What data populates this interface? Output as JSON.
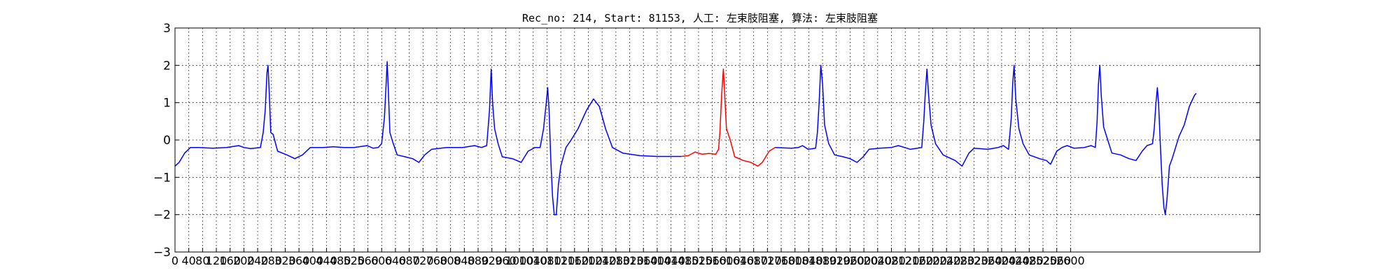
{
  "chart_data": {
    "type": "line",
    "title": "Rec_no: 214, Start: 81153, 人工: 左束肢阻塞, 算法: 左束肢阻塞",
    "xlabel": "",
    "ylabel": "",
    "xlim": [
      0,
      3150
    ],
    "ylim": [
      -3,
      3
    ],
    "yticks": [
      -3,
      -2,
      -1,
      0,
      1,
      2,
      3
    ],
    "ytick_labels": [
      "−3",
      "−2",
      "−1",
      "0",
      "1",
      "2",
      "3"
    ],
    "xtick_step": 40,
    "xtick_max": 2600,
    "xtick_labels": [
      "0",
      "40",
      "80",
      "120",
      "160",
      "200",
      "240",
      "280",
      "320",
      "360",
      "400",
      "440",
      "480",
      "520",
      "560",
      "600",
      "640",
      "680",
      "720",
      "760",
      "800",
      "840",
      "880",
      "920",
      "960",
      "1000",
      "1040",
      "1080",
      "1120",
      "1160",
      "1200",
      "1240",
      "1280",
      "1320",
      "1360",
      "1400",
      "1440",
      "1480",
      "1520",
      "1560",
      "1600",
      "1640",
      "1680",
      "1720",
      "1760",
      "1800",
      "1840",
      "1880",
      "1920",
      "1960",
      "2000",
      "2040",
      "2080",
      "2120",
      "2160",
      "2200",
      "2240",
      "2280",
      "2320",
      "2360",
      "2400",
      "2440",
      "2480",
      "2520",
      "2560",
      "2600"
    ],
    "grid": true,
    "series": [
      {
        "color": "#0000ff",
        "points": [
          [
            0,
            -0.7
          ],
          [
            12,
            -0.6
          ],
          [
            28,
            -0.35
          ],
          [
            45,
            -0.2
          ],
          [
            70,
            -0.2
          ],
          [
            110,
            -0.22
          ],
          [
            150,
            -0.2
          ],
          [
            185,
            -0.15
          ],
          [
            200,
            -0.2
          ],
          [
            220,
            -0.23
          ],
          [
            248,
            -0.2
          ],
          [
            256,
            0.2
          ],
          [
            262,
            0.8
          ],
          [
            267,
            1.8
          ],
          [
            270,
            2.0
          ],
          [
            274,
            1.2
          ],
          [
            278,
            0.2
          ],
          [
            285,
            0.15
          ],
          [
            298,
            -0.3
          ],
          [
            325,
            -0.4
          ],
          [
            348,
            -0.5
          ],
          [
            370,
            -0.4
          ],
          [
            393,
            -0.2
          ],
          [
            430,
            -0.2
          ],
          [
            460,
            -0.18
          ],
          [
            490,
            -0.2
          ],
          [
            520,
            -0.2
          ],
          [
            558,
            -0.15
          ],
          [
            575,
            -0.22
          ],
          [
            590,
            -0.2
          ],
          [
            600,
            -0.1
          ],
          [
            608,
            0.6
          ],
          [
            613,
            1.5
          ],
          [
            616,
            2.1
          ],
          [
            619,
            1.4
          ],
          [
            624,
            0.2
          ],
          [
            632,
            -0.05
          ],
          [
            645,
            -0.4
          ],
          [
            668,
            -0.45
          ],
          [
            690,
            -0.5
          ],
          [
            708,
            -0.6
          ],
          [
            725,
            -0.4
          ],
          [
            745,
            -0.25
          ],
          [
            790,
            -0.2
          ],
          [
            835,
            -0.2
          ],
          [
            870,
            -0.15
          ],
          [
            890,
            -0.2
          ],
          [
            905,
            -0.15
          ],
          [
            913,
            0.8
          ],
          [
            918,
            1.9
          ],
          [
            922,
            1.0
          ],
          [
            928,
            0.3
          ],
          [
            938,
            -0.1
          ],
          [
            950,
            -0.45
          ],
          [
            980,
            -0.5
          ],
          [
            1005,
            -0.6
          ],
          [
            1025,
            -0.3
          ],
          [
            1045,
            -0.2
          ],
          [
            1060,
            -0.2
          ],
          [
            1070,
            0.3
          ],
          [
            1078,
            1.0
          ],
          [
            1082,
            1.4
          ],
          [
            1086,
            0.8
          ],
          [
            1091,
            -0.5
          ],
          [
            1096,
            -1.5
          ],
          [
            1101,
            -2.0
          ],
          [
            1107,
            -2.0
          ],
          [
            1113,
            -1.2
          ],
          [
            1120,
            -0.7
          ],
          [
            1135,
            -0.2
          ],
          [
            1150,
            0.0
          ],
          [
            1170,
            0.3
          ],
          [
            1195,
            0.8
          ],
          [
            1215,
            1.1
          ],
          [
            1232,
            0.9
          ],
          [
            1250,
            0.3
          ],
          [
            1270,
            -0.2
          ],
          [
            1300,
            -0.35
          ],
          [
            1350,
            -0.42
          ],
          [
            1400,
            -0.44
          ],
          [
            1440,
            -0.44
          ],
          [
            1470,
            -0.44
          ]
        ]
      },
      {
        "color": "#ff0000",
        "points": [
          [
            1470,
            -0.44
          ],
          [
            1490,
            -0.42
          ],
          [
            1510,
            -0.32
          ],
          [
            1530,
            -0.38
          ],
          [
            1550,
            -0.36
          ],
          [
            1570,
            -0.38
          ],
          [
            1578,
            -0.25
          ],
          [
            1582,
            0.2
          ],
          [
            1587,
            1.2
          ],
          [
            1592,
            1.9
          ],
          [
            1596,
            1.2
          ],
          [
            1601,
            0.3
          ],
          [
            1612,
            0.0
          ],
          [
            1625,
            -0.45
          ],
          [
            1650,
            -0.55
          ],
          [
            1672,
            -0.6
          ],
          [
            1692,
            -0.7
          ],
          [
            1705,
            -0.6
          ],
          [
            1725,
            -0.3
          ],
          [
            1742,
            -0.2
          ]
        ]
      },
      {
        "color": "#0000ff",
        "points": [
          [
            1742,
            -0.2
          ],
          [
            1790,
            -0.22
          ],
          [
            1810,
            -0.2
          ],
          [
            1822,
            -0.15
          ],
          [
            1838,
            -0.25
          ],
          [
            1860,
            -0.22
          ],
          [
            1865,
            0.2
          ],
          [
            1870,
            1.0
          ],
          [
            1875,
            2.0
          ],
          [
            1880,
            1.5
          ],
          [
            1886,
            0.4
          ],
          [
            1898,
            -0.1
          ],
          [
            1915,
            -0.4
          ],
          [
            1940,
            -0.45
          ],
          [
            1960,
            -0.5
          ],
          [
            1980,
            -0.6
          ],
          [
            1998,
            -0.45
          ],
          [
            2015,
            -0.25
          ],
          [
            2045,
            -0.22
          ],
          [
            2080,
            -0.2
          ],
          [
            2100,
            -0.15
          ],
          [
            2118,
            -0.2
          ],
          [
            2135,
            -0.25
          ],
          [
            2168,
            -0.2
          ],
          [
            2174,
            0.5
          ],
          [
            2178,
            1.2
          ],
          [
            2183,
            1.9
          ],
          [
            2188,
            1.2
          ],
          [
            2195,
            0.4
          ],
          [
            2208,
            -0.1
          ],
          [
            2230,
            -0.4
          ],
          [
            2265,
            -0.55
          ],
          [
            2285,
            -0.7
          ],
          [
            2305,
            -0.35
          ],
          [
            2320,
            -0.22
          ],
          [
            2360,
            -0.25
          ],
          [
            2390,
            -0.2
          ],
          [
            2405,
            -0.15
          ],
          [
            2420,
            -0.25
          ],
          [
            2428,
            0.6
          ],
          [
            2432,
            1.5
          ],
          [
            2436,
            2.0
          ],
          [
            2441,
            1.1
          ],
          [
            2450,
            0.3
          ],
          [
            2462,
            -0.1
          ],
          [
            2480,
            -0.4
          ],
          [
            2510,
            -0.5
          ],
          [
            2530,
            -0.55
          ],
          [
            2542,
            -0.65
          ],
          [
            2560,
            -0.3
          ],
          [
            2575,
            -0.2
          ],
          [
            2590,
            -0.15
          ],
          [
            2610,
            -0.22
          ],
          [
            2640,
            -0.2
          ],
          [
            2660,
            -0.15
          ],
          [
            2672,
            -0.2
          ],
          [
            2677,
            0.5
          ],
          [
            2681,
            1.5
          ],
          [
            2685,
            2.0
          ],
          [
            2689,
            1.2
          ],
          [
            2696,
            0.35
          ],
          [
            2708,
            0.0
          ],
          [
            2720,
            -0.35
          ],
          [
            2745,
            -0.4
          ],
          [
            2770,
            -0.5
          ],
          [
            2790,
            -0.55
          ],
          [
            2808,
            -0.3
          ],
          [
            2822,
            -0.15
          ],
          [
            2838,
            -0.1
          ],
          [
            2843,
            0.3
          ],
          [
            2848,
            1.0
          ],
          [
            2852,
            1.4
          ],
          [
            2856,
            0.9
          ],
          [
            2861,
            -0.2
          ],
          [
            2866,
            -1.2
          ],
          [
            2871,
            -1.8
          ],
          [
            2875,
            -2.0
          ],
          [
            2880,
            -1.6
          ],
          [
            2887,
            -0.7
          ],
          [
            2895,
            -0.5
          ],
          [
            2905,
            -0.2
          ],
          [
            2915,
            0.1
          ],
          [
            2930,
            0.4
          ],
          [
            2945,
            0.9
          ],
          [
            2960,
            1.2
          ],
          [
            2965,
            1.25
          ]
        ]
      }
    ]
  }
}
